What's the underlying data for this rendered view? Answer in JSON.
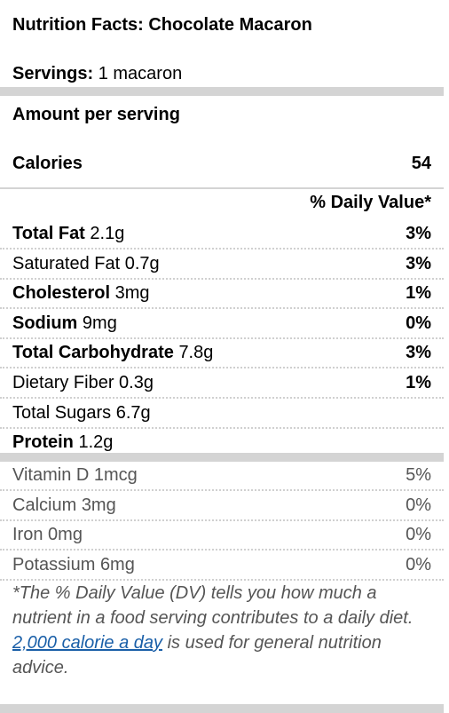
{
  "title": "Nutrition Facts: Chocolate Macaron",
  "servings": {
    "label": "Servings:",
    "value": "1 macaron"
  },
  "amount_per_serving": "Amount per serving",
  "calories": {
    "label": "Calories",
    "value": "54"
  },
  "daily_value_header": "% Daily Value*",
  "nutrients": [
    {
      "name": "Total Fat",
      "amount": "2.1g",
      "dv": "3%",
      "bold": true
    },
    {
      "name": "Saturated Fat",
      "amount": "0.7g",
      "dv": "3%",
      "bold": false
    },
    {
      "name": "Cholesterol",
      "amount": "3mg",
      "dv": "1%",
      "bold": true
    },
    {
      "name": "Sodium",
      "amount": "9mg",
      "dv": "0%",
      "bold": true
    },
    {
      "name": "Total Carbohydrate",
      "amount": "7.8g",
      "dv": "3%",
      "bold": true
    },
    {
      "name": "Dietary Fiber",
      "amount": "0.3g",
      "dv": "1%",
      "bold": false
    },
    {
      "name": "Total Sugars",
      "amount": "6.7g",
      "dv": "",
      "bold": false
    },
    {
      "name": "Protein",
      "amount": "1.2g",
      "dv": "",
      "bold": true
    }
  ],
  "vitamins": [
    {
      "name": "Vitamin D",
      "amount": "1mcg",
      "dv": "5%"
    },
    {
      "name": "Calcium",
      "amount": "3mg",
      "dv": "0%"
    },
    {
      "name": "Iron",
      "amount": "0mg",
      "dv": "0%"
    },
    {
      "name": "Potassium",
      "amount": "6mg",
      "dv": "0%"
    }
  ],
  "footnote": {
    "before": "*The % Daily Value (DV) tells you how much a nutrient in a food serving contributes to a daily diet. ",
    "link": "2,000 calorie a day",
    "after": " is used for general nutrition advice."
  },
  "colors": {
    "divider": "#d4d4d4",
    "muted_text": "#555555",
    "link": "#1a5fa8"
  }
}
